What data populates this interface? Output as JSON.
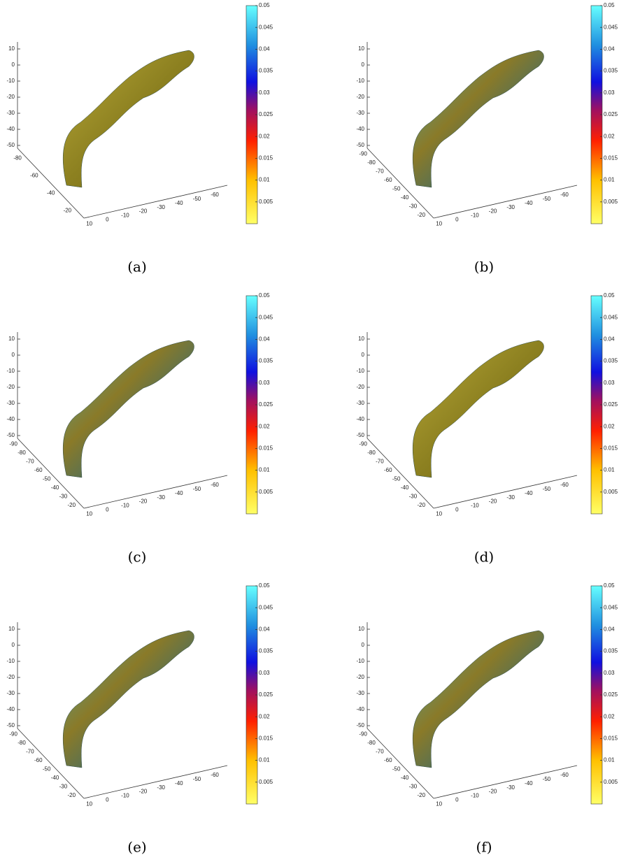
{
  "panels": [
    {
      "caption": "(a)",
      "z_ticks": [
        "10",
        "0",
        "-10",
        "-20",
        "-30",
        "-40",
        "-50"
      ],
      "y_ticks": [
        "-80",
        "-60",
        "-40",
        "-20"
      ],
      "x_ticks": [
        "10",
        "0",
        "-10",
        "-20",
        "-30",
        "-40",
        "-50",
        "-60"
      ],
      "colorbar_ticks": [
        "0.05",
        "0.045",
        "0.04",
        "0.035",
        "0.03",
        "0.025",
        "0.02",
        "0.015",
        "0.01",
        "0.005"
      ]
    },
    {
      "caption": "(b)",
      "z_ticks": [
        "10",
        "0",
        "-10",
        "-20",
        "-30",
        "-40",
        "-50"
      ],
      "y_ticks": [
        "-90",
        "-80",
        "-70",
        "-60",
        "-50",
        "-40",
        "-30",
        "-20"
      ],
      "x_ticks": [
        "10",
        "0",
        "-10",
        "-20",
        "-30",
        "-40",
        "-50",
        "-60"
      ],
      "colorbar_ticks": [
        "0.05",
        "0.045",
        "0.04",
        "0.035",
        "0.03",
        "0.025",
        "0.02",
        "0.015",
        "0.01",
        "0.005"
      ]
    },
    {
      "caption": "(c)",
      "z_ticks": [
        "10",
        "0",
        "-10",
        "-20",
        "-30",
        "-40",
        "-50"
      ],
      "y_ticks": [
        "-90",
        "-80",
        "-70",
        "-60",
        "-50",
        "-40",
        "-30",
        "-20"
      ],
      "x_ticks": [
        "10",
        "0",
        "-10",
        "-20",
        "-30",
        "-40",
        "-50",
        "-60"
      ],
      "colorbar_ticks": [
        "0.05",
        "0.045",
        "0.04",
        "0.035",
        "0.03",
        "0.025",
        "0.02",
        "0.015",
        "0.01",
        "0.005"
      ]
    },
    {
      "caption": "(d)",
      "z_ticks": [
        "10",
        "0",
        "-10",
        "-20",
        "-30",
        "-40",
        "-50"
      ],
      "y_ticks": [
        "-90",
        "-80",
        "-70",
        "-60",
        "-50",
        "-40",
        "-30",
        "-20"
      ],
      "x_ticks": [
        "10",
        "0",
        "-10",
        "-20",
        "-30",
        "-40",
        "-50",
        "-60"
      ],
      "colorbar_ticks": [
        "0.05",
        "0.045",
        "0.04",
        "0.035",
        "0.03",
        "0.025",
        "0.02",
        "0.015",
        "0.01",
        "0.005"
      ]
    },
    {
      "caption": "(e)",
      "z_ticks": [
        "10",
        "0",
        "-10",
        "-20",
        "-30",
        "-40",
        "-50"
      ],
      "y_ticks": [
        "-90",
        "-80",
        "-70",
        "-60",
        "-50",
        "-40",
        "-30",
        "-20"
      ],
      "x_ticks": [
        "10",
        "0",
        "-10",
        "-20",
        "-30",
        "-40",
        "-50",
        "-60"
      ],
      "colorbar_ticks": [
        "0.05",
        "0.045",
        "0.04",
        "0.035",
        "0.03",
        "0.025",
        "0.02",
        "0.015",
        "0.01",
        "0.005"
      ]
    },
    {
      "caption": "(f)",
      "z_ticks": [
        "10",
        "0",
        "-10",
        "-20",
        "-30",
        "-40",
        "-50"
      ],
      "y_ticks": [
        "-90",
        "-80",
        "-70",
        "-60",
        "-50",
        "-40",
        "-30",
        "-20"
      ],
      "x_ticks": [
        "10",
        "0",
        "-10",
        "-20",
        "-30",
        "-40",
        "-50",
        "-60"
      ],
      "colorbar_ticks": [
        "0.05",
        "0.045",
        "0.04",
        "0.035",
        "0.03",
        "0.025",
        "0.02",
        "0.015",
        "0.01",
        "0.005"
      ]
    }
  ]
}
